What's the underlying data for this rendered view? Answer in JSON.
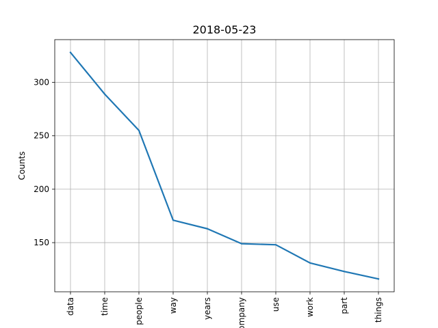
{
  "chart_data": {
    "type": "line",
    "title": "2018-05-23",
    "xlabel": "",
    "ylabel": "Counts",
    "categories": [
      "data",
      "time",
      "people",
      "way",
      "years",
      "company",
      "use",
      "work",
      "part",
      "things"
    ],
    "series": [
      {
        "values": [
          328,
          289,
          255,
          171,
          163,
          149,
          148,
          131,
          123,
          116
        ]
      }
    ],
    "yticks": [
      150,
      200,
      250,
      300
    ],
    "ylim": [
      104,
      340
    ],
    "grid": true,
    "colors": {
      "line": "#1f77b4"
    }
  }
}
